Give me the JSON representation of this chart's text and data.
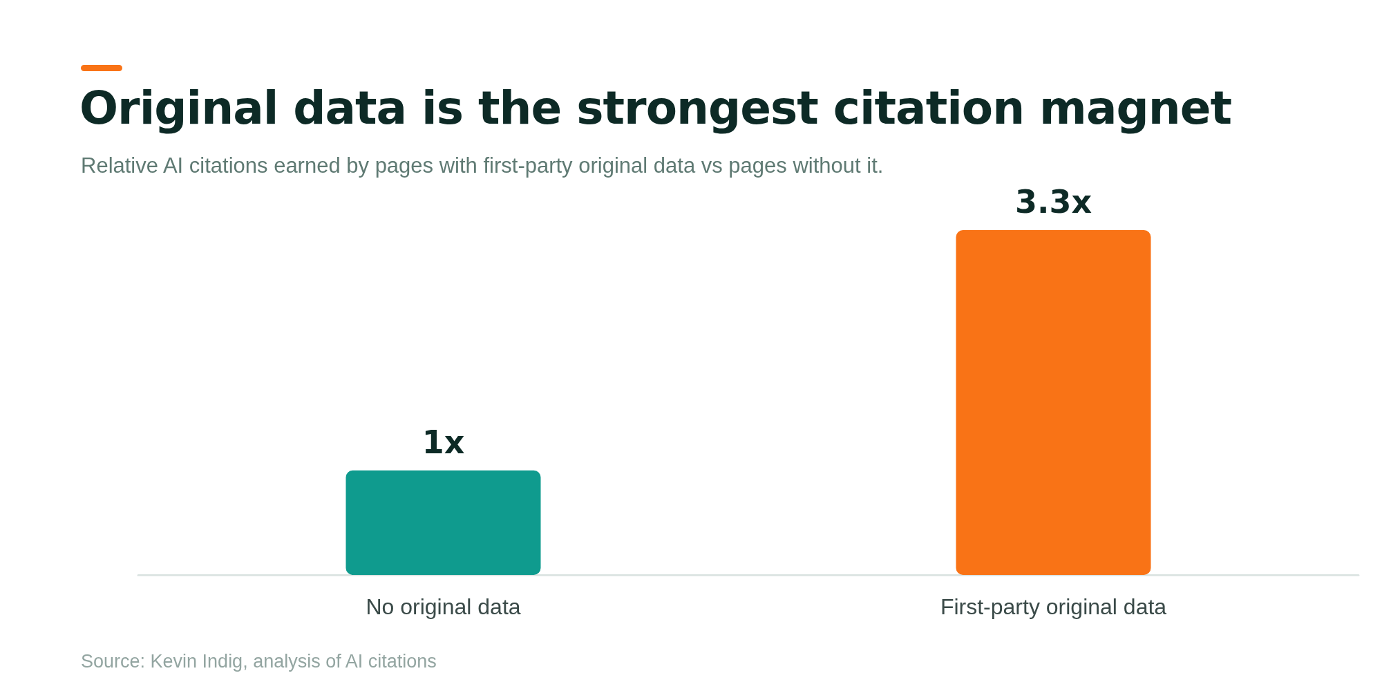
{
  "chart_data": {
    "type": "bar",
    "title": "Original data is the strongest citation magnet",
    "subtitle": "Relative AI citations earned by pages with first-party original data vs pages without it.",
    "categories": [
      "No original data",
      "First-party original data"
    ],
    "values": [
      1,
      3.3
    ],
    "value_labels": [
      "1x",
      "3.3x"
    ],
    "colors": [
      "#0f9b8e",
      "#f97316"
    ],
    "tick_labels": "x",
    "annotations": [
      "Source: Kevin Indig, analysis of AI citations"
    ]
  }
}
